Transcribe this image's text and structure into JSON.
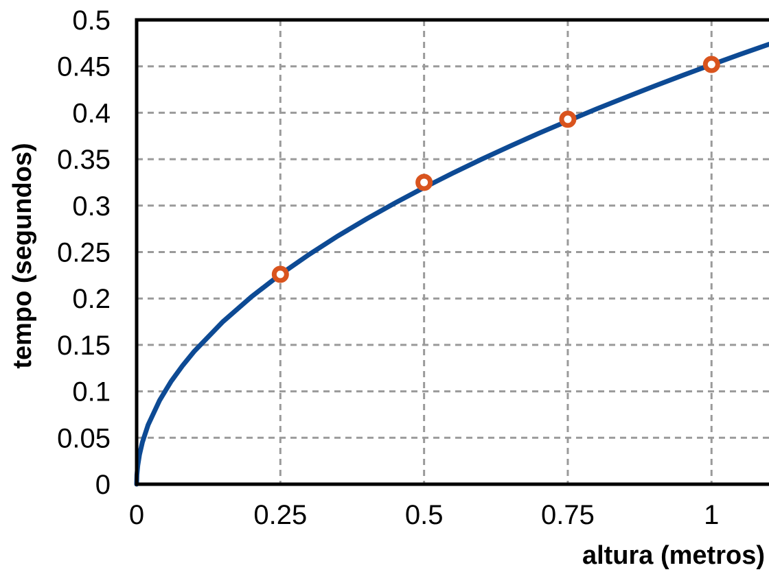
{
  "chart_data": {
    "type": "line",
    "xlabel": "altura (metros)",
    "ylabel": "tempo (segundos)",
    "xlim": [
      0,
      1.1
    ],
    "ylim": [
      0,
      0.5
    ],
    "x_ticks": [
      0,
      0.25,
      0.5,
      0.75,
      1
    ],
    "x_tick_labels": [
      "0",
      "0.25",
      "0.5",
      "0.75",
      "1"
    ],
    "y_ticks": [
      0,
      0.05,
      0.1,
      0.15,
      0.2,
      0.25,
      0.3,
      0.35,
      0.4,
      0.45,
      0.5
    ],
    "y_tick_labels": [
      "0",
      "0.05",
      "0.1",
      "0.15",
      "0.2",
      "0.25",
      "0.3",
      "0.35",
      "0.4",
      "0.45",
      "0.5"
    ],
    "grid": true,
    "series": [
      {
        "kind": "line",
        "color": "#0d4a94",
        "x": [
          0,
          0.0005,
          0.002,
          0.005,
          0.01,
          0.02,
          0.04,
          0.06,
          0.08,
          0.1,
          0.15,
          0.2,
          0.25,
          0.3,
          0.35,
          0.4,
          0.45,
          0.5,
          0.55,
          0.6,
          0.65,
          0.7,
          0.75,
          0.8,
          0.85,
          0.9,
          0.95,
          1.0,
          1.05,
          1.1
        ],
        "y": [
          0,
          0.0101,
          0.0202,
          0.0319,
          0.0452,
          0.0639,
          0.0903,
          0.1107,
          0.1278,
          0.1429,
          0.175,
          0.202,
          0.2259,
          0.2474,
          0.2673,
          0.2857,
          0.303,
          0.3194,
          0.335,
          0.3499,
          0.3642,
          0.378,
          0.3912,
          0.4041,
          0.4165,
          0.4286,
          0.4403,
          0.4518,
          0.4629,
          0.4738
        ]
      },
      {
        "kind": "scatter",
        "color": "#d9541e",
        "x": [
          0.25,
          0.5,
          0.75,
          1.0
        ],
        "y": [
          0.226,
          0.325,
          0.393,
          0.452
        ]
      }
    ]
  }
}
